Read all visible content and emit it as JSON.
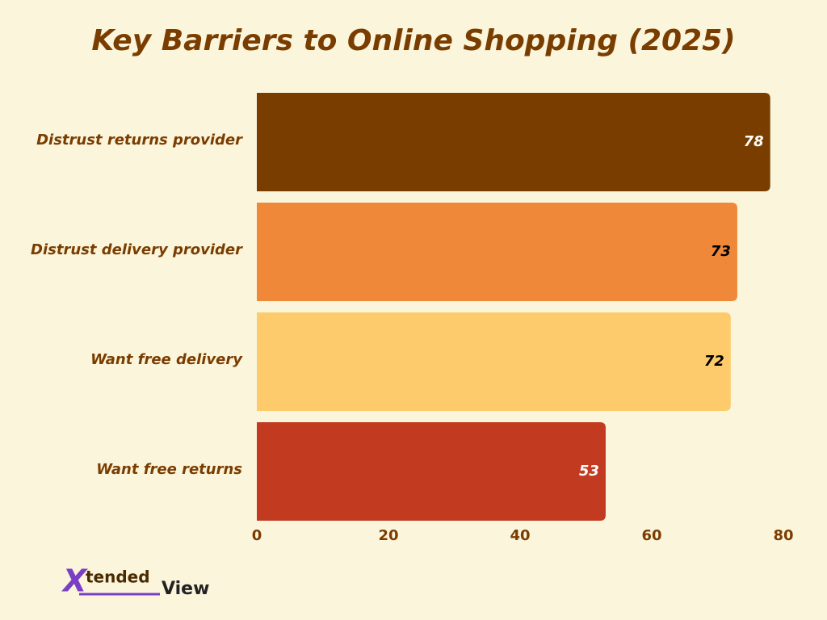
{
  "chart_data": {
    "type": "bar",
    "orientation": "horizontal",
    "title": "Key Barriers to Online Shopping (2025)",
    "categories": [
      "Distrust returns provider",
      "Distrust delivery provider",
      "Want free delivery",
      "Want free returns"
    ],
    "values": [
      78,
      73,
      72,
      53
    ],
    "colors": [
      "#7a3d00",
      "#ef8838",
      "#fdcb6b",
      "#c23b20"
    ],
    "xlim": [
      0,
      80
    ],
    "xticks": [
      0,
      20,
      40,
      60,
      80
    ],
    "grid": false
  },
  "brand": {
    "mark": "X",
    "part1": "tended",
    "part2": "View"
  }
}
